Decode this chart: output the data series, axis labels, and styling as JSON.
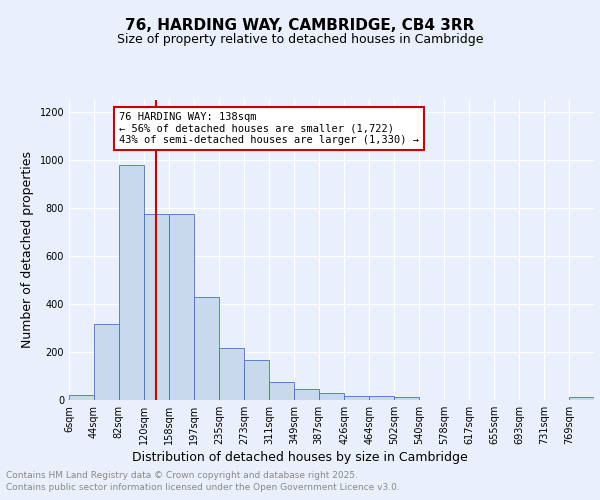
{
  "title1": "76, HARDING WAY, CAMBRIDGE, CB4 3RR",
  "title2": "Size of property relative to detached houses in Cambridge",
  "xlabel": "Distribution of detached houses by size in Cambridge",
  "ylabel": "Number of detached properties",
  "bin_labels": [
    "6sqm",
    "44sqm",
    "82sqm",
    "120sqm",
    "158sqm",
    "197sqm",
    "235sqm",
    "273sqm",
    "311sqm",
    "349sqm",
    "387sqm",
    "426sqm",
    "464sqm",
    "502sqm",
    "540sqm",
    "578sqm",
    "617sqm",
    "655sqm",
    "693sqm",
    "731sqm",
    "769sqm"
  ],
  "bin_edges": [
    6,
    44,
    82,
    120,
    158,
    197,
    235,
    273,
    311,
    349,
    387,
    426,
    464,
    502,
    540,
    578,
    617,
    655,
    693,
    731,
    769,
    807
  ],
  "bar_heights": [
    20,
    315,
    980,
    775,
    775,
    430,
    215,
    165,
    75,
    45,
    28,
    18,
    15,
    12,
    0,
    0,
    0,
    0,
    0,
    0,
    12
  ],
  "bar_color": "#c9d9ec",
  "bar_edge_color": "#4472c4",
  "red_line_x": 138,
  "annotation_text": "76 HARDING WAY: 138sqm\n← 56% of detached houses are smaller (1,722)\n43% of semi-detached houses are larger (1,330) →",
  "annotation_box_color": "#ffffff",
  "annotation_box_edge_color": "#cc0000",
  "ylim": [
    0,
    1250
  ],
  "yticks": [
    0,
    200,
    400,
    600,
    800,
    1000,
    1200
  ],
  "bg_color": "#eaf0fb",
  "grid_color": "#ffffff",
  "footer1": "Contains HM Land Registry data © Crown copyright and database right 2025.",
  "footer2": "Contains public sector information licensed under the Open Government Licence v3.0.",
  "title1_fontsize": 11,
  "title2_fontsize": 9,
  "tick_fontsize": 7,
  "label_fontsize": 9,
  "annotation_fontsize": 7.5,
  "footer_fontsize": 6.5
}
